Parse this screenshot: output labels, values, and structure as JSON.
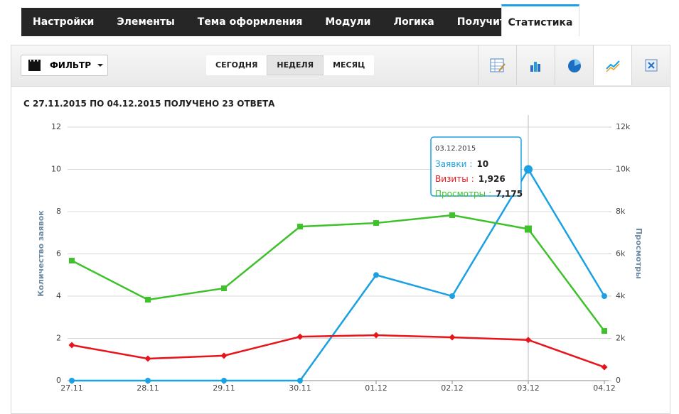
{
  "tabs": [
    "Настройки",
    "Элементы",
    "Тема оформления",
    "Модули",
    "Логика",
    "Получить код",
    "Статистика"
  ],
  "toolbar": {
    "filter": "ФИЛЬТР",
    "periods": [
      "СЕГОДНЯ",
      "НЕДЕЛЯ",
      "МЕСЯЦ"
    ]
  },
  "summary": "С 27.11.2015 ПО 04.12.2015 ПОЛУЧЕНО 23 ОТВЕТА",
  "chart_data": {
    "type": "line",
    "y_label": "Количество заявок",
    "y2_label": "Просмотры",
    "categories": [
      "27.11",
      "28.11",
      "29.11",
      "30.11",
      "01.12",
      "02.12",
      "03.12",
      "04.12"
    ],
    "series": [
      {
        "name": "Заявки",
        "color": "#1ba1e2",
        "marker": "circle",
        "values": [
          0,
          0,
          0,
          0,
          5,
          4,
          10,
          4
        ]
      },
      {
        "name": "Визиты",
        "color": "#e8141b",
        "marker": "diamond",
        "axis": "y2",
        "values": [
          1680,
          1040,
          1180,
          2080,
          2150,
          2050,
          1926,
          640
        ]
      },
      {
        "name": "Просмотры",
        "color": "#3ec12b",
        "marker": "square",
        "axis": "y2",
        "values": [
          5680,
          3830,
          4370,
          7290,
          7460,
          7830,
          7175,
          2350
        ]
      }
    ],
    "ylim": [
      0,
      12
    ],
    "yticks": [
      0,
      2,
      4,
      6,
      8,
      10,
      12
    ],
    "y2lim": [
      0,
      12000
    ],
    "y2ticks": [
      0,
      {
        "value": 2000,
        "label": "2k"
      },
      {
        "value": 4000,
        "label": "4k"
      },
      {
        "value": 6000,
        "label": "6k"
      },
      {
        "value": 8000,
        "label": "8k"
      },
      {
        "value": 10000,
        "label": "10k"
      },
      {
        "value": 12000,
        "label": "12k"
      }
    ],
    "grid": true,
    "tooltip": {
      "title": "03.12.2015",
      "separator": ":",
      "values": [
        "10",
        "1,926",
        "7,175"
      ]
    }
  }
}
